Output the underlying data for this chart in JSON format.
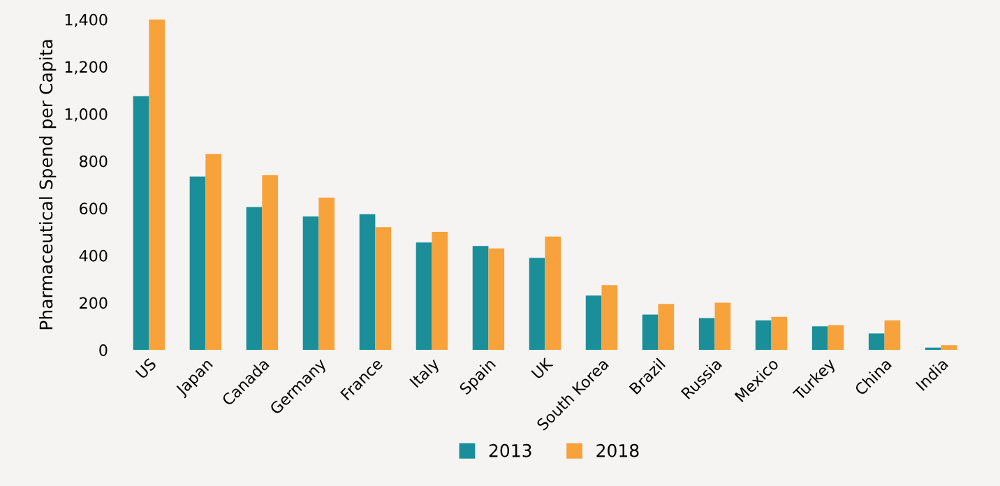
{
  "chart_data": {
    "type": "bar",
    "ylabel": "Pharmaceutical Spend per Capita",
    "categories": [
      "US",
      "Japan",
      "Canada",
      "Germany",
      "France",
      "Italy",
      "Spain",
      "UK",
      "South Korea",
      "Brazil",
      "Russia",
      "Mexico",
      "Turkey",
      "China",
      "India"
    ],
    "series": [
      {
        "name": "2013",
        "color": "#1a8f9a",
        "values": [
          1075,
          735,
          605,
          565,
          575,
          455,
          440,
          390,
          230,
          150,
          135,
          125,
          100,
          70,
          10
        ]
      },
      {
        "name": "2018",
        "color": "#f7a23b",
        "values": [
          1400,
          830,
          740,
          645,
          520,
          500,
          430,
          480,
          275,
          195,
          200,
          140,
          105,
          125,
          20
        ]
      }
    ],
    "ylim": [
      0,
      1400
    ],
    "yticks": [
      0,
      {
        "value": 200,
        "label": "200"
      },
      {
        "value": 400,
        "label": "400"
      },
      {
        "value": 600,
        "label": "600"
      },
      {
        "value": 800,
        "label": "800"
      },
      {
        "value": 1000,
        "label": "1,000"
      },
      {
        "value": 1200,
        "label": "1,200"
      },
      {
        "value": 1400,
        "label": "1,400"
      }
    ],
    "grid": false,
    "legend": "bottom"
  }
}
